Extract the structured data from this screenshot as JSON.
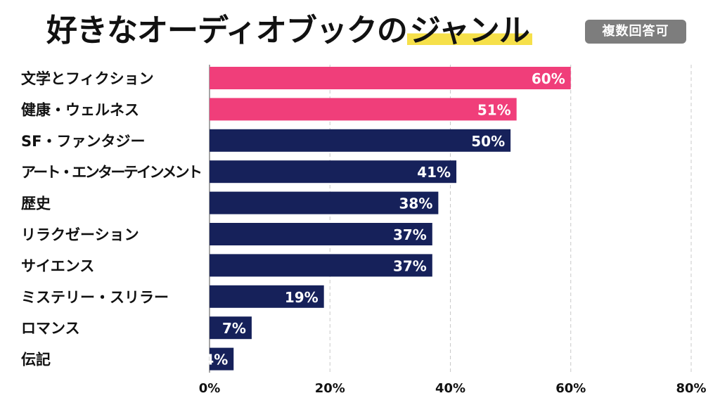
{
  "title_main": "好きなオーディオブックの",
  "title_highlight": "ジャンル",
  "badge": "複数回答可",
  "colors": {
    "highlight": "#f03e7a",
    "normal": "#16215a",
    "grid": "#c8c8c8",
    "text": "#111111"
  },
  "chart_data": {
    "type": "bar",
    "orientation": "horizontal",
    "title": "好きなオーディオブックのジャンル",
    "categories": [
      "文学とフィクション",
      "健康・ウェルネス",
      "SF・ファンタジー",
      "アート・エンターテインメント",
      "歴史",
      "リラクゼーション",
      "サイエンス",
      "ミステリー・スリラー",
      "ロマンス",
      "伝記"
    ],
    "values": [
      60,
      51,
      50,
      41,
      38,
      37,
      37,
      19,
      7,
      4
    ],
    "value_labels": [
      "60%",
      "51%",
      "50%",
      "41%",
      "38%",
      "37%",
      "37%",
      "19%",
      "7%",
      "4%"
    ],
    "highlighted": [
      true,
      true,
      false,
      false,
      false,
      false,
      false,
      false,
      false,
      false
    ],
    "xlim": [
      0,
      80
    ],
    "xticks": [
      0,
      20,
      40,
      60,
      80
    ],
    "xtick_labels": [
      "0%",
      "20%",
      "40%",
      "60%",
      "80%"
    ],
    "grid": "vertical dashed"
  }
}
